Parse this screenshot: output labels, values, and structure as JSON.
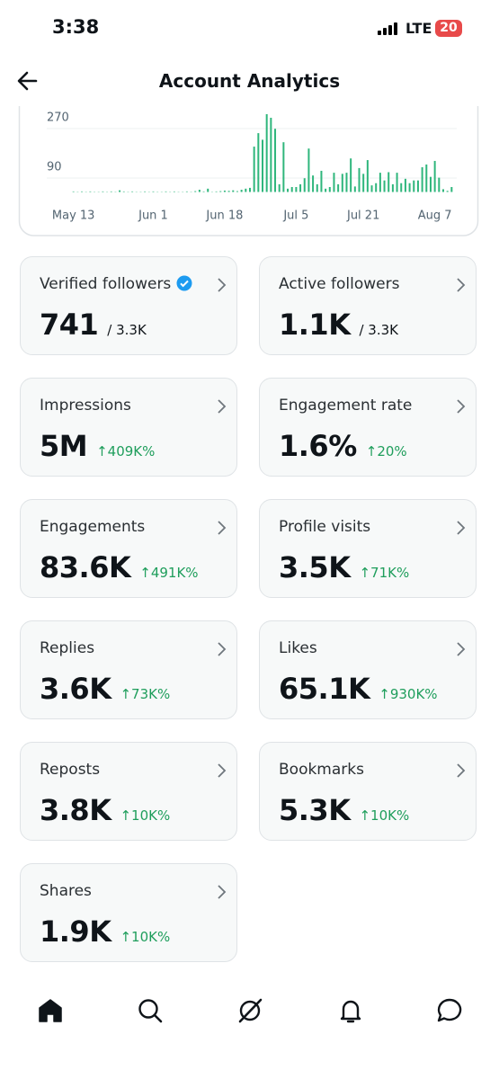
{
  "status_bar": {
    "time": "3:38",
    "network": "LTE",
    "battery": "20"
  },
  "header": {
    "title": "Account Analytics"
  },
  "chart_data": {
    "type": "bar",
    "color": "#2fb67c",
    "grid": true,
    "xlim": [
      -1,
      91
    ],
    "xticks": [
      {
        "value": 0,
        "label": "May 13"
      },
      {
        "value": 19,
        "label": "Jun 1"
      },
      {
        "value": 36,
        "label": "Jun 18"
      },
      {
        "value": 53,
        "label": "Jul 5"
      },
      {
        "value": 69,
        "label": "Jul 21"
      },
      {
        "value": 86,
        "label": "Aug 7"
      }
    ],
    "ylim": [
      0,
      300
    ],
    "yticks": [
      90,
      270
    ],
    "values": [
      2,
      1,
      2,
      1,
      2,
      1,
      1,
      2,
      1,
      2,
      1,
      6,
      2,
      1,
      2,
      1,
      1,
      2,
      1,
      2,
      1,
      1,
      2,
      1,
      2,
      1,
      1,
      2,
      1,
      3,
      8,
      2,
      12,
      1,
      2,
      3,
      5,
      4,
      6,
      3,
      8,
      12,
      15,
      165,
      214,
      190,
      283,
      270,
      230,
      28,
      181,
      12,
      18,
      18,
      28,
      50,
      158,
      60,
      28,
      77,
      12,
      18,
      70,
      28,
      66,
      70,
      122,
      20,
      87,
      66,
      116,
      24,
      32,
      70,
      42,
      72,
      28,
      70,
      32,
      48,
      32,
      42,
      42,
      90,
      100,
      55,
      113,
      52,
      10,
      4,
      18
    ]
  },
  "cards": [
    {
      "label": "Verified followers",
      "verified": true,
      "value": "741",
      "total": "/ 3.3K"
    },
    {
      "label": "Active followers",
      "value": "1.1K",
      "total": "/ 3.3K"
    },
    {
      "label": "Impressions",
      "value": "5M",
      "change": "↑409K%"
    },
    {
      "label": "Engagement rate",
      "value": "1.6%",
      "change": "↑20%"
    },
    {
      "label": "Engagements",
      "value": "83.6K",
      "change": "↑491K%"
    },
    {
      "label": "Profile visits",
      "value": "3.5K",
      "change": "↑71K%"
    },
    {
      "label": "Replies",
      "value": "3.6K",
      "change": "↑73K%"
    },
    {
      "label": "Likes",
      "value": "65.1K",
      "change": "↑930K%"
    },
    {
      "label": "Reposts",
      "value": "3.8K",
      "change": "↑10K%"
    },
    {
      "label": "Bookmarks",
      "value": "5.3K",
      "change": "↑10K%"
    },
    {
      "label": "Shares",
      "value": "1.9K",
      "change": "↑10K%"
    }
  ]
}
